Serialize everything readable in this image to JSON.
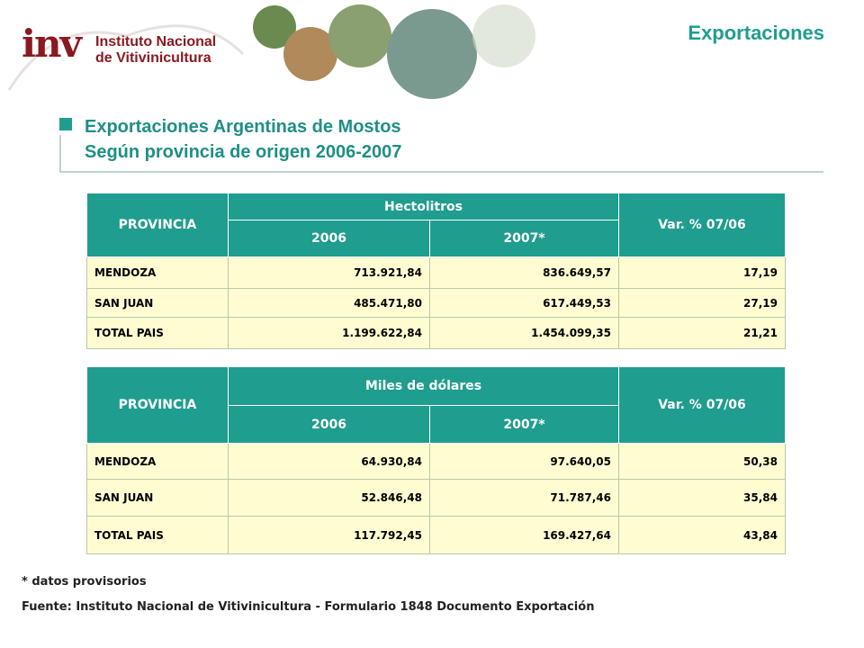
{
  "header": {
    "logo_mark": "inv",
    "institute_lines": [
      "Instituto Nacional",
      "de Vitivinicultura"
    ],
    "section": "Exportaciones"
  },
  "title": [
    "Exportaciones Argentinas de Mostos",
    "Según provincia de origen  2006-2007"
  ],
  "tables": [
    {
      "columns": {
        "province": "PROVINCIA",
        "group": "Hectolitros",
        "years": [
          "2006",
          "2007*"
        ],
        "variation": "Var. % 07/06"
      },
      "rows": [
        [
          "MENDOZA",
          "713.921,84",
          "836.649,57",
          "17,19"
        ],
        [
          "SAN JUAN",
          "485.471,80",
          "617.449,53",
          "27,19"
        ],
        [
          "TOTAL PAIS",
          "1.199.622,84",
          "1.454.099,35",
          "21,21"
        ]
      ]
    },
    {
      "columns": {
        "province": "PROVINCIA",
        "group": "Miles de dólares",
        "years": [
          "2006",
          "2007*"
        ],
        "variation": "Var. % 07/06"
      },
      "rows": [
        [
          "MENDOZA",
          "64.930,84",
          "97.640,05",
          "50,38"
        ],
        [
          "SAN JUAN",
          "52.846,48",
          "71.787,46",
          "35,84"
        ],
        [
          "TOTAL PAIS",
          "117.792,45",
          "169.427,64",
          "43,84"
        ]
      ]
    }
  ],
  "notes": [
    "* datos provisorios",
    "Fuente: Instituto Nacional de Vitivinicultura - Formulario 1848 Documento Exportación"
  ]
}
